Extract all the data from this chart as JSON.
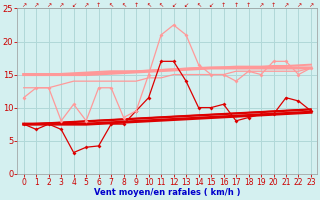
{
  "x": [
    0,
    1,
    2,
    3,
    4,
    5,
    6,
    7,
    8,
    9,
    10,
    11,
    12,
    13,
    14,
    15,
    16,
    17,
    18,
    19,
    20,
    21,
    22,
    23
  ],
  "lines": [
    {
      "y": [
        7.5,
        6.7,
        7.5,
        6.7,
        3.2,
        4.0,
        4.2,
        7.5,
        7.5,
        9.5,
        11.5,
        17.0,
        17.0,
        14.0,
        10.0,
        10.0,
        10.5,
        8.0,
        8.5,
        9.0,
        9.0,
        11.5,
        11.0,
        9.5
      ],
      "color": "#dd0000",
      "lw": 0.9,
      "marker": "D",
      "ms": 2.0
    },
    {
      "y": [
        7.5,
        7.5,
        7.5,
        7.5,
        7.5,
        7.5,
        7.6,
        7.7,
        7.8,
        7.9,
        8.0,
        8.1,
        8.2,
        8.3,
        8.4,
        8.5,
        8.6,
        8.7,
        8.8,
        8.9,
        9.0,
        9.1,
        9.2,
        9.3
      ],
      "color": "#dd0000",
      "lw": 2.2,
      "marker": null,
      "ms": 0
    },
    {
      "y": [
        7.5,
        7.5,
        7.6,
        7.7,
        7.8,
        7.9,
        8.0,
        8.1,
        8.2,
        8.3,
        8.4,
        8.5,
        8.6,
        8.7,
        8.8,
        8.9,
        9.0,
        9.1,
        9.2,
        9.3,
        9.4,
        9.5,
        9.6,
        9.7
      ],
      "color": "#dd0000",
      "lw": 1.4,
      "marker": null,
      "ms": 0
    },
    {
      "y": [
        7.5,
        7.6,
        7.7,
        7.8,
        7.9,
        8.0,
        8.1,
        8.2,
        8.3,
        8.4,
        8.5,
        8.6,
        8.7,
        8.8,
        8.9,
        9.0,
        9.1,
        9.2,
        9.3,
        9.4,
        9.5,
        9.6,
        9.7,
        9.8
      ],
      "color": "#dd0000",
      "lw": 0.9,
      "marker": null,
      "ms": 0
    },
    {
      "y": [
        11.5,
        13.0,
        13.0,
        8.0,
        10.5,
        8.0,
        13.0,
        13.0,
        8.5,
        9.5,
        15.0,
        21.0,
        22.5,
        21.0,
        16.5,
        15.0,
        15.0,
        14.0,
        15.5,
        15.0,
        17.0,
        17.0,
        15.0,
        16.0
      ],
      "color": "#ff9999",
      "lw": 0.9,
      "marker": "D",
      "ms": 2.0
    },
    {
      "y": [
        15.0,
        15.0,
        15.0,
        15.0,
        15.0,
        15.0,
        15.1,
        15.2,
        15.3,
        15.4,
        15.5,
        15.6,
        15.7,
        15.8,
        15.9,
        16.0,
        16.0,
        16.0,
        16.0,
        16.0,
        16.0,
        16.0,
        16.0,
        16.0
      ],
      "color": "#ff9999",
      "lw": 2.2,
      "marker": null,
      "ms": 0
    },
    {
      "y": [
        15.0,
        15.0,
        15.0,
        15.1,
        15.2,
        15.3,
        15.4,
        15.5,
        15.5,
        15.5,
        15.6,
        15.7,
        15.8,
        15.9,
        16.0,
        16.0,
        16.1,
        16.2,
        16.2,
        16.2,
        16.3,
        16.3,
        16.4,
        16.5
      ],
      "color": "#ff9999",
      "lw": 1.4,
      "marker": null,
      "ms": 0
    },
    {
      "y": [
        13.0,
        13.0,
        13.0,
        13.5,
        14.0,
        14.0,
        14.0,
        14.0,
        14.0,
        14.0,
        14.5,
        14.5,
        15.0,
        15.0,
        15.0,
        15.0,
        15.0,
        15.5,
        15.5,
        15.5,
        15.5,
        15.5,
        15.5,
        16.0
      ],
      "color": "#ff9999",
      "lw": 0.9,
      "marker": null,
      "ms": 0
    }
  ],
  "wind_arrows": [
    "↗",
    "↗",
    "↗",
    "↗",
    "↙",
    "↗",
    "↑",
    "↖",
    "↖",
    "↑",
    "↖",
    "↖",
    "↙",
    "↙",
    "↖",
    "↙",
    "↑",
    "↑",
    "↑",
    "↗",
    "↑",
    "↗",
    "↗",
    "↗"
  ],
  "xlabel": "Vent moyen/en rafales ( km/h )",
  "xlim": [
    -0.5,
    23.5
  ],
  "ylim": [
    0,
    25
  ],
  "yticks": [
    0,
    5,
    10,
    15,
    20,
    25
  ],
  "xticks": [
    0,
    1,
    2,
    3,
    4,
    5,
    6,
    7,
    8,
    9,
    10,
    11,
    12,
    13,
    14,
    15,
    16,
    17,
    18,
    19,
    20,
    21,
    22,
    23
  ],
  "bg_color": "#d4f0f0",
  "grid_color": "#b0d8d8",
  "tick_color": "#cc0000",
  "xlabel_color": "#0000cc"
}
